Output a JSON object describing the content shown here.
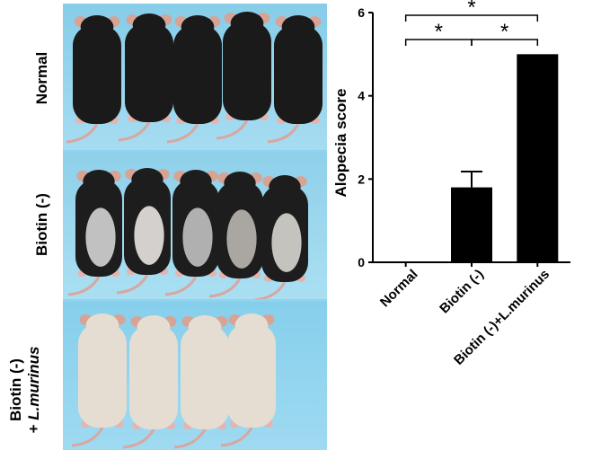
{
  "photo_panel": {
    "row_labels": {
      "normal": "Normal",
      "biotin_minus": "Biotin (-)",
      "biotin_murinus_line1": "Biotin (-)",
      "biotin_murinus_line2_prefix": "+ ",
      "biotin_murinus_line2_italic": "L.murinus"
    }
  },
  "chart_data": {
    "type": "bar",
    "ylabel": "Alopecia score",
    "xlabel": "",
    "ylim": [
      0,
      6
    ],
    "yticks": [
      0,
      2,
      4,
      6
    ],
    "categories": [
      "Normal",
      "Biotin (-)",
      "Biotin (-)+L.murinus"
    ],
    "values": [
      0,
      1.8,
      5.0
    ],
    "error_bars": [
      0,
      0.38,
      0
    ],
    "bar_color": "#000000",
    "significance": [
      {
        "from": 0,
        "to": 2,
        "label": "*"
      },
      {
        "from": 0,
        "to": 1,
        "label": "*"
      },
      {
        "from": 1,
        "to": 2,
        "label": "*"
      }
    ]
  }
}
